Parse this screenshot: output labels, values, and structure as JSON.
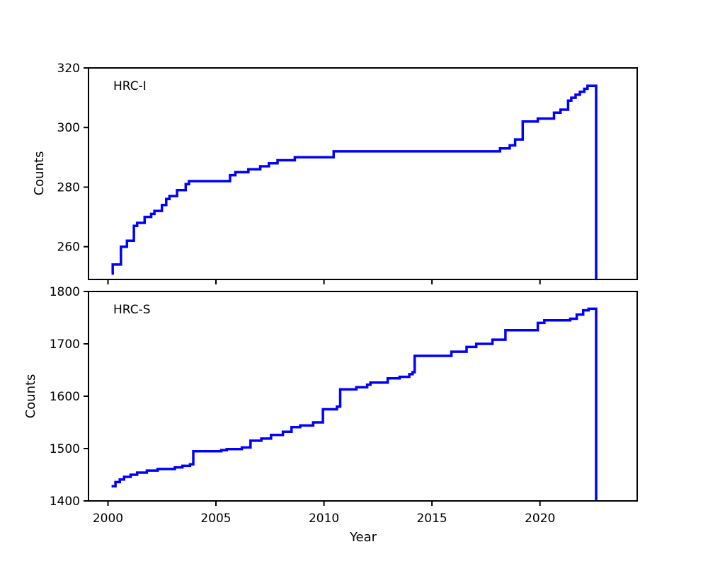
{
  "figure": {
    "background": "#ffffff",
    "line_color": "#0000ff",
    "axis_color": "#000000",
    "text_color": "#000000"
  },
  "chart_data": [
    {
      "type": "line",
      "drawstyle": "steps-post",
      "label": "HRC-I",
      "ylabel": "Counts",
      "xlabel": "",
      "xlim": [
        1999.1,
        2024.5
      ],
      "ylim": [
        249,
        320
      ],
      "xticks": [
        2000,
        2005,
        2010,
        2015,
        2020
      ],
      "xtick_labels": [
        "2000",
        "2005",
        "2010",
        "2015",
        "2020"
      ],
      "show_xtick_labels": false,
      "yticks": [
        260,
        280,
        300,
        320
      ],
      "ytick_labels": [
        "260",
        "280",
        "300",
        "320"
      ],
      "grid": false,
      "legend": "none",
      "end_drop_year": 2022.6,
      "series": [
        {
          "name": "HRC-I cumulative counts",
          "x": [
            2000.17,
            2000.22,
            2000.6,
            2000.88,
            2001.2,
            2001.35,
            2001.7,
            2002.0,
            2002.15,
            2002.5,
            2002.7,
            2002.85,
            2003.2,
            2003.6,
            2003.75,
            2005.65,
            2005.9,
            2006.5,
            2007.05,
            2007.45,
            2007.85,
            2008.65,
            2010.45,
            2018.15,
            2018.6,
            2018.85,
            2019.2,
            2019.9,
            2020.65,
            2020.95,
            2021.3,
            2021.45,
            2021.65,
            2021.85,
            2022.05,
            2022.2
          ],
          "y": [
            251,
            254,
            260,
            262,
            267,
            268,
            270,
            271,
            272,
            274,
            276,
            277,
            279,
            281,
            282,
            284,
            285,
            286,
            287,
            288,
            289,
            290,
            292,
            293,
            294,
            296,
            302,
            303,
            305,
            306,
            309,
            310,
            311,
            312,
            313,
            314
          ]
        }
      ]
    },
    {
      "type": "line",
      "drawstyle": "steps-post",
      "label": "HRC-S",
      "ylabel": "Counts",
      "xlabel": "Year",
      "xlim": [
        1999.1,
        2024.5
      ],
      "ylim": [
        1400,
        1800
      ],
      "xticks": [
        2000,
        2005,
        2010,
        2015,
        2020
      ],
      "xtick_labels": [
        "2000",
        "2005",
        "2010",
        "2015",
        "2020"
      ],
      "show_xtick_labels": true,
      "yticks": [
        1400,
        1500,
        1600,
        1700,
        1800
      ],
      "ytick_labels": [
        "1400",
        "1500",
        "1600",
        "1700",
        "1800"
      ],
      "grid": false,
      "legend": "none",
      "end_drop_year": 2022.6,
      "series": [
        {
          "name": "HRC-S cumulative counts",
          "x": [
            2000.17,
            2000.35,
            2000.55,
            2000.75,
            2001.05,
            2001.35,
            2001.8,
            2002.3,
            2003.1,
            2003.45,
            2003.8,
            2003.95,
            2005.25,
            2005.5,
            2006.2,
            2006.6,
            2007.1,
            2007.55,
            2008.1,
            2008.5,
            2008.9,
            2009.5,
            2009.95,
            2010.6,
            2010.75,
            2011.5,
            2012.0,
            2012.15,
            2012.95,
            2013.5,
            2013.95,
            2014.1,
            2014.2,
            2015.9,
            2016.6,
            2017.05,
            2017.8,
            2018.4,
            2019.9,
            2020.2,
            2021.4,
            2021.7,
            2022.0,
            2022.25
          ],
          "y": [
            1428,
            1436,
            1441,
            1446,
            1450,
            1454,
            1458,
            1461,
            1464,
            1467,
            1470,
            1495,
            1497,
            1499,
            1502,
            1515,
            1519,
            1526,
            1532,
            1541,
            1544,
            1550,
            1575,
            1580,
            1613,
            1617,
            1622,
            1626,
            1634,
            1637,
            1642,
            1646,
            1677,
            1685,
            1694,
            1700,
            1708,
            1726,
            1740,
            1745,
            1748,
            1756,
            1764,
            1767
          ]
        }
      ]
    }
  ]
}
